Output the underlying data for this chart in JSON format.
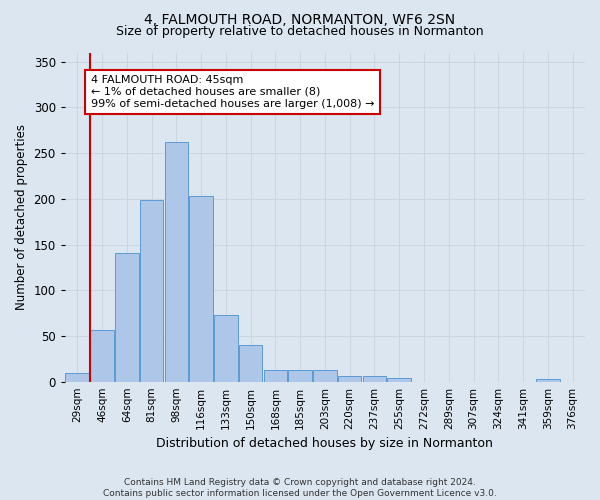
{
  "title1": "4, FALMOUTH ROAD, NORMANTON, WF6 2SN",
  "title2": "Size of property relative to detached houses in Normanton",
  "xlabel": "Distribution of detached houses by size in Normanton",
  "ylabel": "Number of detached properties",
  "categories": [
    "29sqm",
    "46sqm",
    "64sqm",
    "81sqm",
    "98sqm",
    "116sqm",
    "133sqm",
    "150sqm",
    "168sqm",
    "185sqm",
    "203sqm",
    "220sqm",
    "237sqm",
    "255sqm",
    "272sqm",
    "289sqm",
    "307sqm",
    "324sqm",
    "341sqm",
    "359sqm",
    "376sqm"
  ],
  "values": [
    10,
    57,
    141,
    199,
    262,
    203,
    73,
    40,
    13,
    13,
    13,
    6,
    6,
    4,
    0,
    0,
    0,
    0,
    0,
    3,
    0
  ],
  "bar_color": "#aec6e8",
  "bar_edgecolor": "#5b9bd5",
  "property_line_color": "#cc0000",
  "annotation_text": "4 FALMOUTH ROAD: 45sqm\n← 1% of detached houses are smaller (8)\n99% of semi-detached houses are larger (1,008) →",
  "annotation_box_color": "#ffffff",
  "annotation_box_edgecolor": "#cc0000",
  "grid_color": "#ccd6e0",
  "background_color": "#dce6f0",
  "footer1": "Contains HM Land Registry data © Crown copyright and database right 2024.",
  "footer2": "Contains public sector information licensed under the Open Government Licence v3.0.",
  "ylim": [
    0,
    360
  ],
  "yticks": [
    0,
    50,
    100,
    150,
    200,
    250,
    300,
    350
  ]
}
